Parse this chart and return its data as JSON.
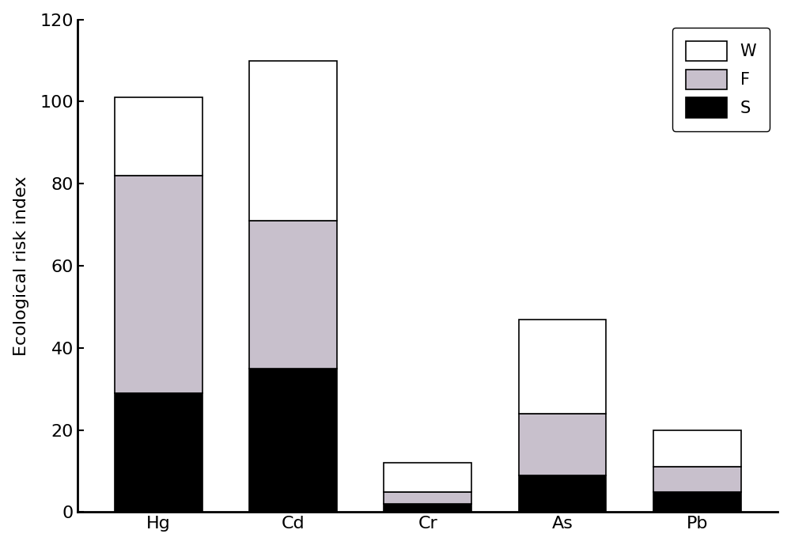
{
  "categories": [
    "Hg",
    "Cd",
    "Cr",
    "As",
    "Pb"
  ],
  "S_values": [
    29,
    35,
    2,
    9,
    5
  ],
  "F_values": [
    53,
    36,
    3,
    15,
    6
  ],
  "W_values": [
    19,
    39,
    7,
    23,
    9
  ],
  "colors": {
    "S": "#000000",
    "F": "#c8c0cc",
    "W": "#ffffff"
  },
  "ylabel": "Ecological risk index",
  "ylim": [
    0,
    120
  ],
  "yticks": [
    0,
    20,
    40,
    60,
    80,
    100,
    120
  ],
  "legend_labels": [
    "W",
    "F",
    "S"
  ],
  "bar_width": 0.65,
  "edge_color": "#000000"
}
